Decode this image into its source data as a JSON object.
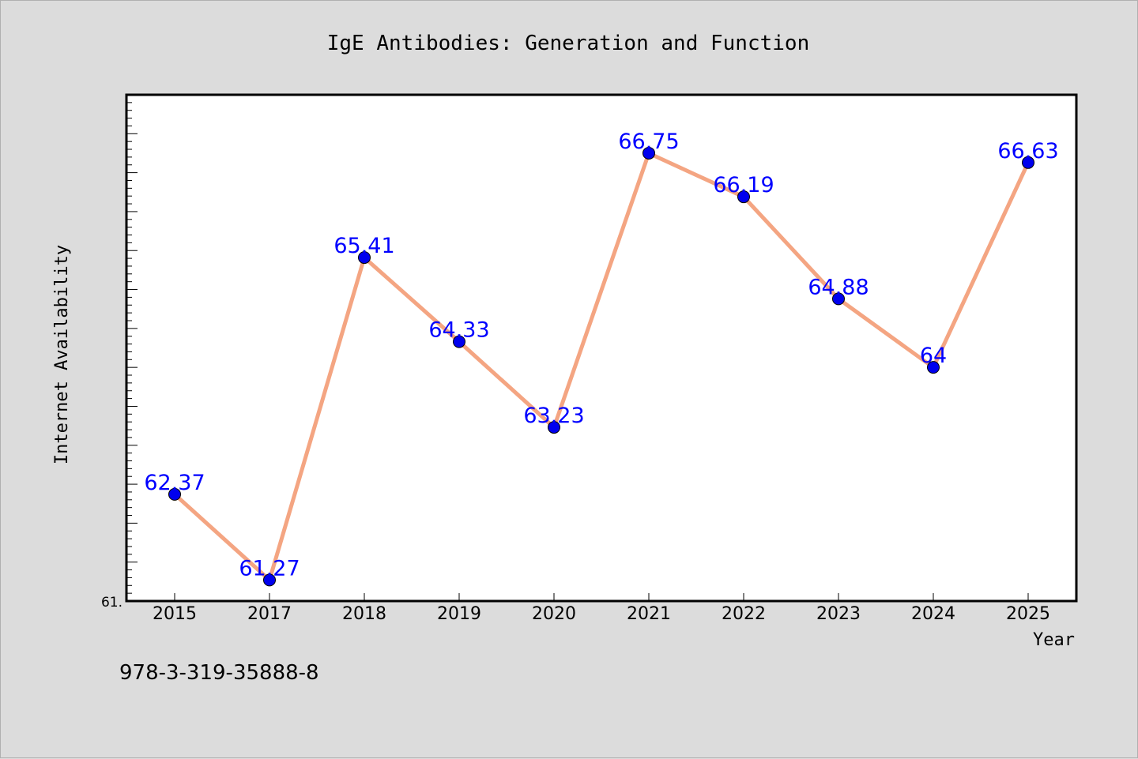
{
  "footer": {
    "isbn": "978-3-319-35888-8"
  },
  "chart_data": {
    "type": "line",
    "title": "IgE Antibodies: Generation and Function",
    "xlabel": "Year",
    "ylabel": "Internet Availability",
    "categories": [
      "2015",
      "2017",
      "2018",
      "2019",
      "2020",
      "2021",
      "2022",
      "2023",
      "2024",
      "2025"
    ],
    "values": [
      62.37,
      61.27,
      65.41,
      64.33,
      63.23,
      66.75,
      66.19,
      64.88,
      64.0,
      66.63
    ],
    "data_labels": [
      "62.37",
      "61.27",
      "65.41",
      "64.33",
      "63.23",
      "66.75",
      "66.19",
      "64.88",
      "64",
      "66.63"
    ],
    "ylim": [
      61.0,
      67.5
    ],
    "y_tick_label": "61.",
    "grid": false,
    "legend": "none",
    "colors": {
      "line": "#f4a582",
      "marker": "#0000ee",
      "label": "#0000ff",
      "plot_bg": "#ffffff",
      "page_bg": "#dcdcdc"
    }
  }
}
